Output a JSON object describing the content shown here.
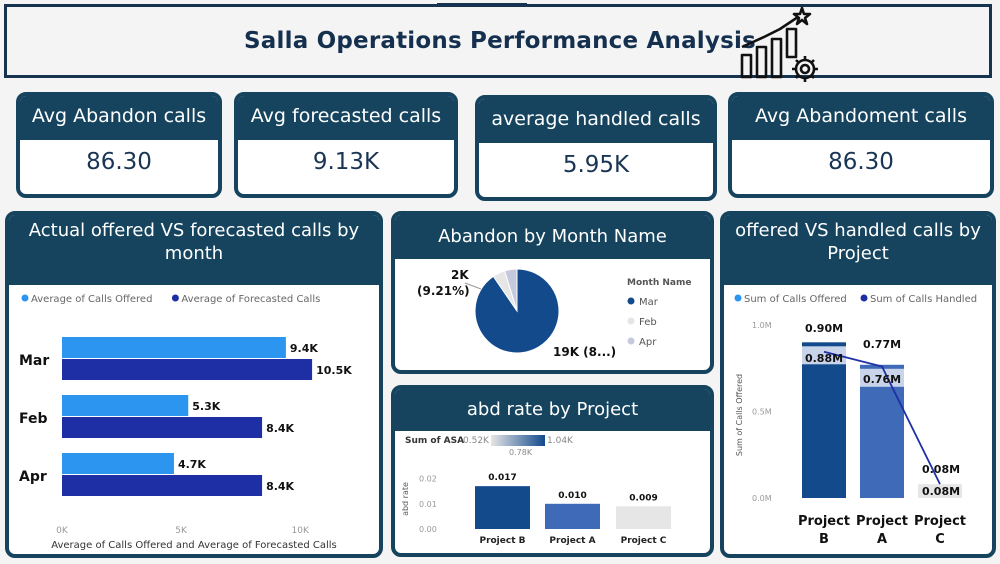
{
  "title": "Salla Operations Performance Analysis",
  "kpis": [
    {
      "label": "Avg Abandon calls",
      "value": "86.30"
    },
    {
      "label": "Avg forecasted calls",
      "value": "9.13K"
    },
    {
      "label": "average handled calls",
      "value": "5.95K"
    },
    {
      "label": "Avg Abandoment calls",
      "value": "86.30"
    }
  ],
  "icons": {
    "title_icon": "growth-chart-gear-icon"
  },
  "chart_data": [
    {
      "type": "bar",
      "orientation": "horizontal",
      "title": "Actual offered VS forecasted calls by month",
      "categories": [
        "Mar",
        "Feb",
        "Apr"
      ],
      "series": [
        {
          "name": "Average of Calls Offered",
          "values": [
            9400,
            5300,
            4700
          ],
          "labels": [
            "9.4K",
            "5.3K",
            "4.7K"
          ],
          "color": "#2b95f0"
        },
        {
          "name": "Average of Forecasted Calls",
          "values": [
            10500,
            8400,
            8400
          ],
          "labels": [
            "10.5K",
            "8.4K",
            "8.4K"
          ],
          "color": "#1e2fa6"
        }
      ],
      "xlabel": "Average of Calls Offered and Average of Forecasted Calls",
      "xticks": [
        "0K",
        "5K",
        "10K"
      ],
      "xlim": [
        0,
        11000
      ],
      "legend": "top-left"
    },
    {
      "type": "pie",
      "title": "Abandon by Month Name",
      "legend_title": "Month Name",
      "slices": [
        {
          "name": "Mar",
          "value": 19000,
          "label": "19K (8...)",
          "color": "#124a8c"
        },
        {
          "name": "Feb",
          "value": 1000,
          "label": "",
          "color": "#e6e6e6"
        },
        {
          "name": "Apr",
          "value": 1000,
          "label": "",
          "color": "#c5c9de"
        }
      ],
      "outer_label": {
        "value": "2K",
        "pct": "(9.21%)"
      },
      "legend": "right"
    },
    {
      "type": "bar",
      "title": "abd rate by Project",
      "categories": [
        "Project B",
        "Project A",
        "Project C"
      ],
      "values": [
        0.017,
        0.01,
        0.009
      ],
      "labels": [
        "0.017",
        "0.010",
        "0.009"
      ],
      "colors": [
        "#124a8c",
        "#3f6ab8",
        "#e6e6e6"
      ],
      "ylabel": "abd rate",
      "yticks": [
        "0.00",
        "0.01",
        "0.02"
      ],
      "ylim": [
        0,
        0.025
      ],
      "color_legend": {
        "title": "Sum of ASA",
        "min": "0.52K",
        "max": "1.04K",
        "marker": "0.78K"
      }
    },
    {
      "type": "bar",
      "subtype": "stacked-with-line",
      "title": "offered VS handled calls by Project",
      "categories": [
        "Project B",
        "Project A",
        "Project C"
      ],
      "series": [
        {
          "name": "Sum of Calls Offered",
          "values": [
            0.9,
            0.77,
            0.08
          ],
          "labels": [
            "0.90M",
            "0.77M",
            "0.08M"
          ],
          "color": "#2b95f0"
        },
        {
          "name": "Sum of Calls Handled",
          "values": [
            0.88,
            0.76,
            0.08
          ],
          "labels": [
            "0.88M",
            "0.76M",
            "0.08M"
          ],
          "color": "#1e2fa6"
        }
      ],
      "ylabel": "Sum of Calls Offered",
      "yticks": [
        "0.0M",
        "0.5M",
        "1.0M"
      ],
      "ylim": [
        0,
        1.0
      ],
      "legend": "top-left"
    }
  ]
}
